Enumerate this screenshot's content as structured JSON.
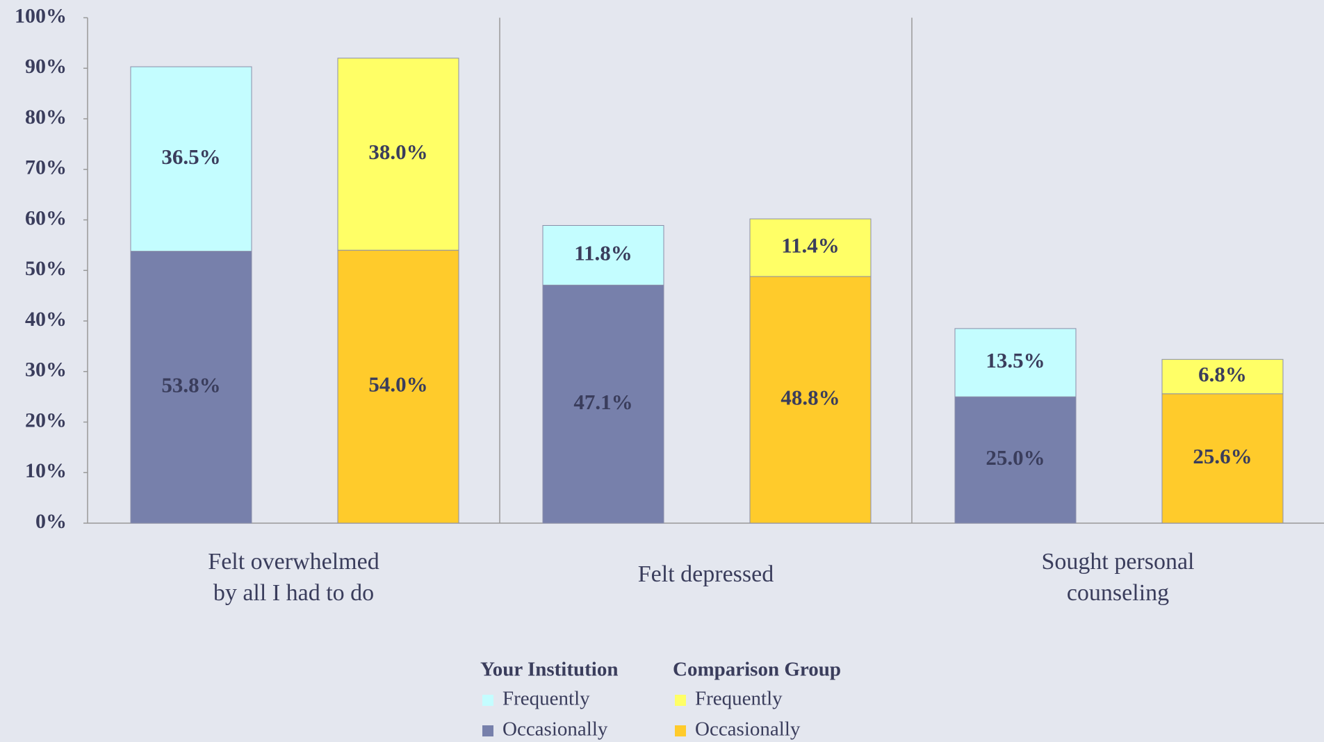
{
  "chart_data": {
    "type": "stacked-bar",
    "categories": [
      "Felt overwhelmed\nby all I had to do",
      "Felt depressed",
      "Sought personal\ncounseling"
    ],
    "series": [
      {
        "name": "Occasionally",
        "group": "Your Institution",
        "color": "#7780ab",
        "values": [
          53.8,
          47.1,
          25.0
        ],
        "value_labels": [
          "53.8%",
          "47.1%",
          "25.0%"
        ]
      },
      {
        "name": "Frequently",
        "group": "Your Institution",
        "color": "#c4fdff",
        "values": [
          36.5,
          11.8,
          13.5
        ],
        "value_labels": [
          "36.5%",
          "11.8%",
          "13.5%"
        ]
      },
      {
        "name": "Occasionally",
        "group": "Comparison Group",
        "color": "#ffcb2b",
        "values": [
          54.0,
          48.8,
          25.6
        ],
        "value_labels": [
          "54.0%",
          "48.8%",
          "25.6%"
        ]
      },
      {
        "name": "Frequently",
        "group": "Comparison Group",
        "color": "#ffff66",
        "values": [
          38.0,
          11.4,
          6.8
        ],
        "value_labels": [
          "38.0%",
          "11.4%",
          "6.8%"
        ]
      }
    ],
    "ylim": [
      0,
      100
    ],
    "yticks": [
      {
        "value": 0,
        "label": "0%"
      },
      {
        "value": 10,
        "label": "10%"
      },
      {
        "value": 20,
        "label": "20%"
      },
      {
        "value": 30,
        "label": "30%"
      },
      {
        "value": 40,
        "label": "40%"
      },
      {
        "value": 50,
        "label": "50%"
      },
      {
        "value": 60,
        "label": "60%"
      },
      {
        "value": 70,
        "label": "70%"
      },
      {
        "value": 80,
        "label": "80%"
      },
      {
        "value": 90,
        "label": "90%"
      },
      {
        "value": 100,
        "label": "100%"
      }
    ]
  }
}
